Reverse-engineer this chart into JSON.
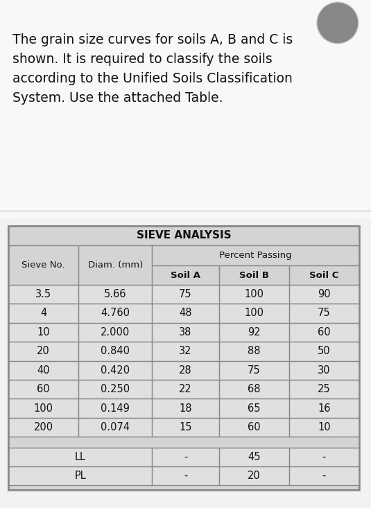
{
  "title_text": "The grain size curves for soils A, B and C is\nshown. It is required to classify the soils\naccording to the Unified Soils Classification\nSystem. Use the attached Table.",
  "table_title": "SIEVE ANALYSIS",
  "rows": [
    [
      "3.5",
      "5.66",
      "75",
      "100",
      "90"
    ],
    [
      "4",
      "4.760",
      "48",
      "100",
      "75"
    ],
    [
      "10",
      "2.000",
      "38",
      "92",
      "60"
    ],
    [
      "20",
      "0.840",
      "32",
      "88",
      "50"
    ],
    [
      "40",
      "0.420",
      "28",
      "75",
      "30"
    ],
    [
      "60",
      "0.250",
      "22",
      "68",
      "25"
    ],
    [
      "100",
      "0.149",
      "18",
      "65",
      "16"
    ],
    [
      "200",
      "0.074",
      "15",
      "60",
      "10"
    ]
  ],
  "ll_row": [
    "LL",
    "",
    "-",
    "45",
    "-"
  ],
  "pl_row": [
    "PL",
    "",
    "-",
    "20",
    "-"
  ],
  "page_bg": "#f2f2f2",
  "top_section_bg": "#ffffff",
  "table_outer_bg": "#c8c8c8",
  "table_inner_bg": "#d4d4d4",
  "cell_bg": "#e0e0e0",
  "white": "#ffffff",
  "border_dark": "#888888",
  "border_med": "#aaaaaa",
  "text_dark": "#111111",
  "title_fontsize": 13.5,
  "header_fontsize": 9.5,
  "subheader_fontsize": 9.5,
  "cell_fontsize": 10.5
}
